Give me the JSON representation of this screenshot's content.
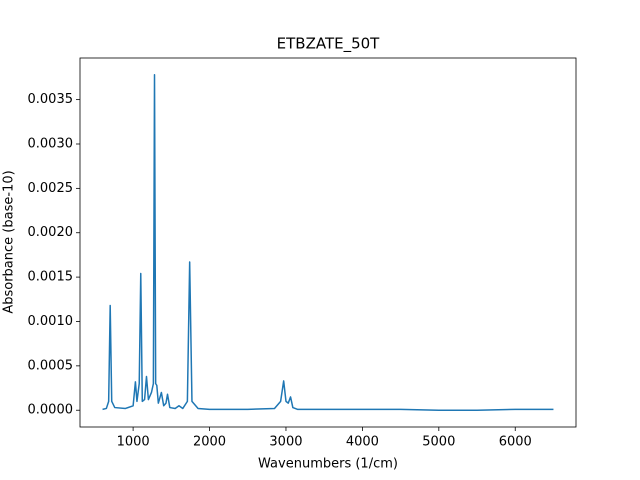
{
  "chart_data": {
    "type": "line",
    "title": "ETBZATE_50T",
    "x_label": "Wavenumbers (1/cm)",
    "y_label": "Absorbance (base-10)",
    "x": [
      600,
      650,
      680,
      700,
      720,
      760,
      900,
      1000,
      1030,
      1050,
      1080,
      1100,
      1120,
      1150,
      1175,
      1200,
      1240,
      1265,
      1280,
      1295,
      1310,
      1330,
      1370,
      1400,
      1430,
      1450,
      1480,
      1550,
      1600,
      1650,
      1710,
      1740,
      1770,
      1850,
      2000,
      2500,
      2850,
      2930,
      2970,
      3000,
      3030,
      3060,
      3090,
      3150,
      3500,
      4000,
      4500,
      5000,
      5500,
      6000,
      6500
    ],
    "series": [
      {
        "color": "#1f77b4",
        "values": [
          1e-05,
          2e-05,
          0.0001,
          0.00118,
          0.0001,
          3e-05,
          2e-05,
          5e-05,
          0.00032,
          0.0001,
          0.0003,
          0.00154,
          0.0001,
          0.00012,
          0.00038,
          0.00012,
          0.0002,
          0.0003,
          0.00378,
          0.0003,
          0.00028,
          8e-05,
          0.0002,
          5e-05,
          8e-05,
          0.00018,
          3e-05,
          2e-05,
          5e-05,
          2e-05,
          0.0001,
          0.00167,
          0.0001,
          2e-05,
          1e-05,
          1e-05,
          2e-05,
          0.0001,
          0.00033,
          0.0001,
          8e-05,
          0.00015,
          3e-05,
          1e-05,
          1e-05,
          1e-05,
          1e-05,
          0,
          0,
          1e-05,
          1e-05
        ]
      }
    ],
    "xlim": [
      305,
      6795
    ],
    "ylim": [
      -0.000189,
      0.003969
    ],
    "xticks": [
      1000,
      2000,
      3000,
      4000,
      5000,
      6000
    ],
    "yticks": [
      {
        "value": 0,
        "label": "0.0000"
      },
      {
        "value": 0.0005,
        "label": "0.0005"
      },
      {
        "value": 0.001,
        "label": "0.0010"
      },
      {
        "value": 0.0015,
        "label": "0.0015"
      },
      {
        "value": 0.002,
        "label": "0.0020"
      },
      {
        "value": 0.0025,
        "label": "0.0025"
      },
      {
        "value": 0.003,
        "label": "0.0030"
      },
      {
        "value": 0.0035,
        "label": "0.0035"
      }
    ]
  }
}
